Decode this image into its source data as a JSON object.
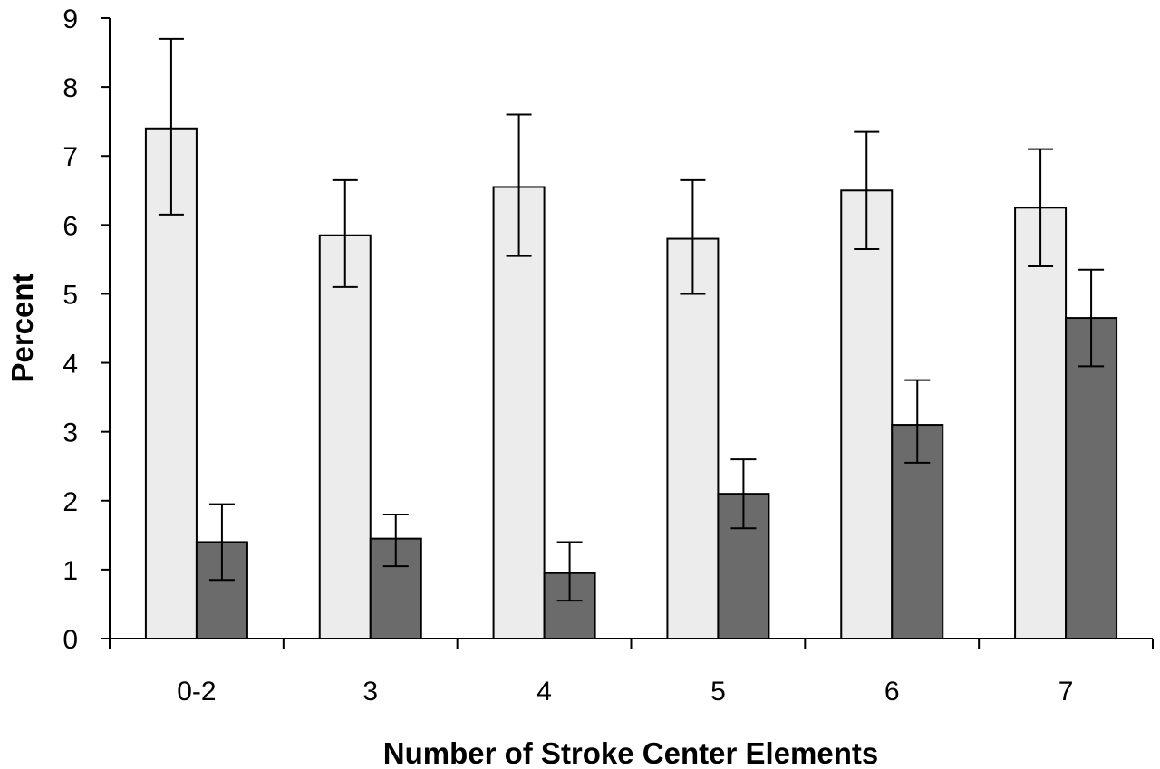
{
  "chart_data": {
    "type": "bar",
    "title": "",
    "xlabel": "Number of Stroke Center Elements",
    "ylabel": "Percent",
    "categories": [
      "0-2",
      "3",
      "4",
      "5",
      "6",
      "7"
    ],
    "ylim": [
      0,
      9
    ],
    "yticks": [
      0,
      1,
      2,
      3,
      4,
      5,
      6,
      7,
      8,
      9
    ],
    "grid": false,
    "legend": "none",
    "series": [
      {
        "color": "#ececec",
        "values": [
          7.4,
          5.85,
          6.55,
          5.8,
          6.5,
          6.25
        ],
        "err_low": [
          6.15,
          5.1,
          5.55,
          5.0,
          5.65,
          5.4
        ],
        "err_high": [
          8.7,
          6.65,
          7.6,
          6.65,
          7.35,
          7.1
        ]
      },
      {
        "color": "#6b6b6b",
        "values": [
          1.4,
          1.45,
          0.95,
          2.1,
          3.1,
          4.65
        ],
        "err_low": [
          0.85,
          1.05,
          0.55,
          1.6,
          2.55,
          3.95
        ],
        "err_high": [
          1.95,
          1.8,
          1.4,
          2.6,
          3.75,
          5.35
        ]
      }
    ]
  }
}
